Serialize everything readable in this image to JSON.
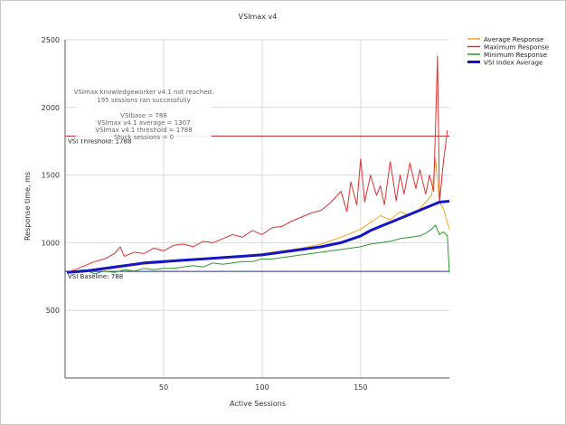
{
  "chart_data": {
    "type": "line",
    "title": "VSImax v4",
    "xlabel": "Active Sessions",
    "ylabel": "Response time, ms",
    "xlim": [
      0,
      195
    ],
    "ylim": [
      0,
      2500
    ],
    "x_ticks": [
      50,
      100,
      150
    ],
    "y_ticks": [
      500,
      1000,
      1500,
      2000,
      2500
    ],
    "grid": true,
    "legend_position": "top-right",
    "annotations": [
      "VSImax knowledgeworker v4.1 not reached.",
      "195 sessions ran successfully",
      "VSIbase = 788",
      "VSImax v4.1 average = 1307",
      "VSImax v4.1 threshold = 1788",
      "Stuck sessions = 0"
    ],
    "reference_lines": [
      {
        "label": "VSI Threshold: 1788",
        "value": 1788,
        "color": "#c83232"
      },
      {
        "label": "VSI Baseline: 788",
        "value": 788,
        "color": "#1f2f8f"
      }
    ],
    "series": [
      {
        "name": "Average Response",
        "color": "#f5a623",
        "points": [
          [
            1,
            780
          ],
          [
            10,
            790
          ],
          [
            20,
            800
          ],
          [
            30,
            820
          ],
          [
            40,
            840
          ],
          [
            50,
            850
          ],
          [
            60,
            870
          ],
          [
            70,
            880
          ],
          [
            80,
            890
          ],
          [
            90,
            900
          ],
          [
            100,
            920
          ],
          [
            110,
            940
          ],
          [
            120,
            960
          ],
          [
            130,
            990
          ],
          [
            140,
            1040
          ],
          [
            150,
            1100
          ],
          [
            155,
            1150
          ],
          [
            160,
            1200
          ],
          [
            165,
            1170
          ],
          [
            170,
            1230
          ],
          [
            175,
            1200
          ],
          [
            180,
            1250
          ],
          [
            183,
            1300
          ],
          [
            186,
            1350
          ],
          [
            188,
            1620
          ],
          [
            190,
            1300
          ],
          [
            192,
            1250
          ],
          [
            195,
            1100
          ]
        ]
      },
      {
        "name": "Maximum Response",
        "color": "#e03030",
        "points": [
          [
            1,
            780
          ],
          [
            5,
            800
          ],
          [
            10,
            830
          ],
          [
            15,
            860
          ],
          [
            20,
            880
          ],
          [
            25,
            920
          ],
          [
            28,
            970
          ],
          [
            30,
            900
          ],
          [
            35,
            930
          ],
          [
            40,
            920
          ],
          [
            45,
            960
          ],
          [
            50,
            940
          ],
          [
            55,
            980
          ],
          [
            60,
            990
          ],
          [
            65,
            970
          ],
          [
            70,
            1010
          ],
          [
            75,
            1000
          ],
          [
            80,
            1030
          ],
          [
            85,
            1060
          ],
          [
            90,
            1040
          ],
          [
            95,
            1090
          ],
          [
            100,
            1060
          ],
          [
            105,
            1110
          ],
          [
            110,
            1120
          ],
          [
            115,
            1160
          ],
          [
            120,
            1190
          ],
          [
            125,
            1220
          ],
          [
            130,
            1240
          ],
          [
            135,
            1300
          ],
          [
            140,
            1380
          ],
          [
            143,
            1230
          ],
          [
            145,
            1450
          ],
          [
            148,
            1280
          ],
          [
            150,
            1620
          ],
          [
            152,
            1300
          ],
          [
            155,
            1500
          ],
          [
            158,
            1350
          ],
          [
            160,
            1420
          ],
          [
            162,
            1280
          ],
          [
            165,
            1600
          ],
          [
            168,
            1310
          ],
          [
            170,
            1500
          ],
          [
            172,
            1360
          ],
          [
            175,
            1590
          ],
          [
            178,
            1400
          ],
          [
            180,
            1540
          ],
          [
            183,
            1360
          ],
          [
            185,
            1500
          ],
          [
            187,
            1380
          ],
          [
            189,
            2380
          ],
          [
            190,
            1300
          ],
          [
            192,
            1600
          ],
          [
            194,
            1830
          ]
        ]
      },
      {
        "name": "Minimum Response",
        "color": "#2a9a2a",
        "points": [
          [
            1,
            780
          ],
          [
            5,
            790
          ],
          [
            10,
            800
          ],
          [
            15,
            770
          ],
          [
            20,
            790
          ],
          [
            25,
            780
          ],
          [
            30,
            800
          ],
          [
            35,
            790
          ],
          [
            40,
            810
          ],
          [
            45,
            800
          ],
          [
            50,
            810
          ],
          [
            55,
            810
          ],
          [
            60,
            820
          ],
          [
            65,
            830
          ],
          [
            70,
            820
          ],
          [
            75,
            850
          ],
          [
            80,
            840
          ],
          [
            85,
            850
          ],
          [
            90,
            860
          ],
          [
            95,
            860
          ],
          [
            100,
            880
          ],
          [
            105,
            880
          ],
          [
            110,
            890
          ],
          [
            115,
            900
          ],
          [
            120,
            910
          ],
          [
            125,
            920
          ],
          [
            130,
            930
          ],
          [
            135,
            940
          ],
          [
            140,
            950
          ],
          [
            145,
            960
          ],
          [
            150,
            970
          ],
          [
            155,
            990
          ],
          [
            160,
            1000
          ],
          [
            165,
            1010
          ],
          [
            170,
            1030
          ],
          [
            175,
            1040
          ],
          [
            180,
            1050
          ],
          [
            183,
            1070
          ],
          [
            186,
            1100
          ],
          [
            188,
            1130
          ],
          [
            190,
            1060
          ],
          [
            192,
            1080
          ],
          [
            194,
            1050
          ],
          [
            195,
            780
          ]
        ]
      },
      {
        "name": "VSI Index Average",
        "color": "#1515c8",
        "points": [
          [
            1,
            780
          ],
          [
            10,
            790
          ],
          [
            20,
            810
          ],
          [
            30,
            830
          ],
          [
            40,
            850
          ],
          [
            50,
            860
          ],
          [
            60,
            870
          ],
          [
            70,
            880
          ],
          [
            80,
            890
          ],
          [
            90,
            900
          ],
          [
            100,
            910
          ],
          [
            110,
            930
          ],
          [
            120,
            950
          ],
          [
            130,
            970
          ],
          [
            140,
            1000
          ],
          [
            150,
            1050
          ],
          [
            155,
            1090
          ],
          [
            160,
            1120
          ],
          [
            165,
            1150
          ],
          [
            170,
            1180
          ],
          [
            175,
            1210
          ],
          [
            180,
            1240
          ],
          [
            185,
            1270
          ],
          [
            190,
            1300
          ],
          [
            195,
            1307
          ]
        ]
      }
    ]
  }
}
